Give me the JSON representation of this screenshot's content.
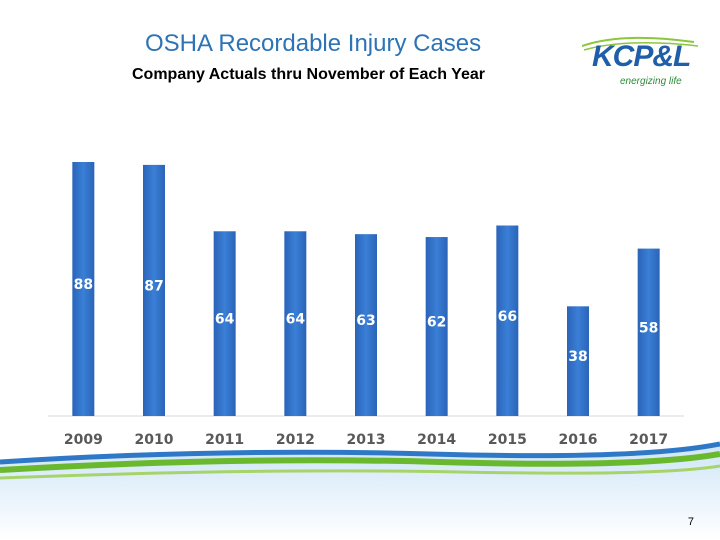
{
  "header": {
    "title": "OSHA Recordable Injury Cases",
    "subtitle": "Company Actuals thru November of Each Year"
  },
  "logo": {
    "brand": "KCP&L",
    "tagline": "energizing life"
  },
  "page_number": "7",
  "colors": {
    "title": "#2e74b5",
    "bar": "#3a7fd6",
    "bar_dark": "#2a64b8",
    "label": "#ffffff",
    "tick": "#595959",
    "wave_green": "#6ab82e",
    "wave_blue": "#2f78c7"
  },
  "chart_data": {
    "type": "bar",
    "categories": [
      "2009",
      "2010",
      "2011",
      "2012",
      "2013",
      "2014",
      "2015",
      "2016",
      "2017"
    ],
    "values": [
      88,
      87,
      64,
      64,
      63,
      62,
      66,
      38,
      58
    ],
    "title": "",
    "xlabel": "",
    "ylabel": "",
    "data_labels": true,
    "grid": false,
    "legend": "none"
  }
}
